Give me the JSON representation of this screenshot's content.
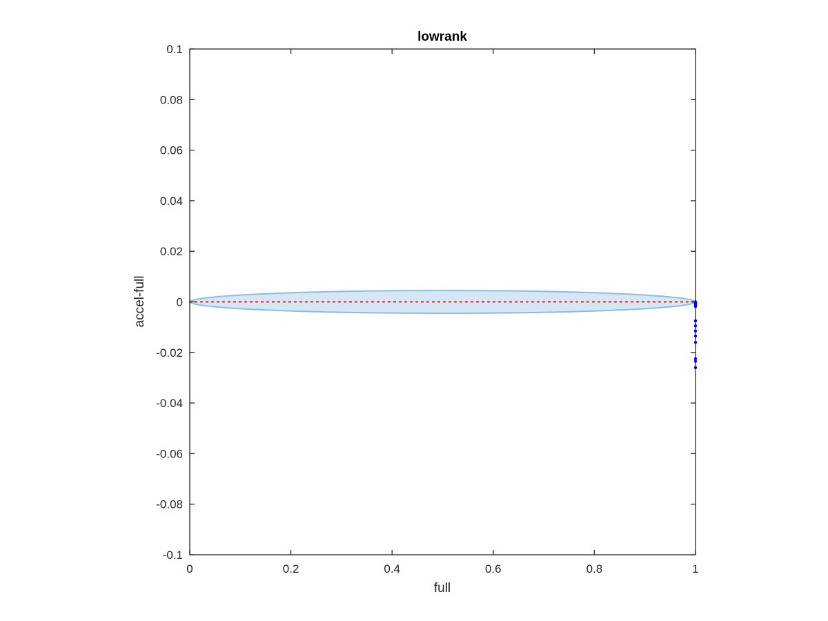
{
  "chart_data": {
    "type": "scatter",
    "title": "lowrank",
    "xlabel": "full",
    "ylabel": "accel-full",
    "xlim": [
      0,
      1
    ],
    "ylim": [
      -0.1,
      0.1
    ],
    "xticks": [
      0,
      0.2,
      0.4,
      0.6,
      0.8,
      1
    ],
    "xtick_labels": [
      "0",
      "0.2",
      "0.4",
      "0.6",
      "0.8",
      "1"
    ],
    "yticks": [
      0.1,
      0.08,
      0.06,
      0.04,
      0.02,
      0,
      -0.02,
      -0.04,
      -0.06,
      -0.08,
      -0.1
    ],
    "ytick_labels": [
      "0.1",
      "0.08",
      "0.06",
      "0.04",
      "0.02",
      "0",
      "-0.02",
      "-0.04",
      "-0.06",
      "-0.08",
      "-0.1"
    ],
    "grid": false,
    "box": true,
    "ellipse": {
      "x_range": [
        0,
        1
      ],
      "half_width": 0.0045,
      "fill_color": "#d6e6f4",
      "edge_color": "#88bfde"
    },
    "reference_line": {
      "x_range": [
        0,
        1
      ],
      "y": 0,
      "color": "#ff0000",
      "style": "dotted"
    },
    "series": [
      {
        "color": "#0000ff",
        "x": [
          1,
          1,
          1,
          1,
          1,
          1,
          1,
          1,
          1,
          1,
          1,
          1,
          1,
          1,
          1
        ],
        "y": [
          0,
          -0.0003,
          -0.0006,
          -0.0009,
          -0.0012,
          -0.0015,
          -0.0018,
          -0.0075,
          -0.0095,
          -0.0115,
          -0.0135,
          -0.016,
          -0.0225,
          -0.0235,
          -0.026
        ]
      }
    ]
  }
}
